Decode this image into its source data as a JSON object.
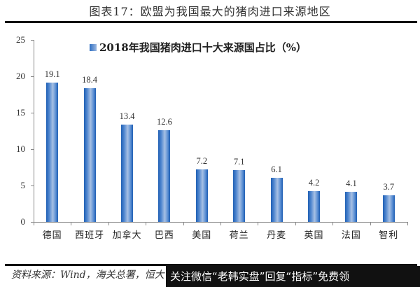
{
  "header": {
    "title": "图表17：欧盟为我国最大的猪肉进口来源地区"
  },
  "chart_data": {
    "type": "bar",
    "title": "2018年我国猪肉进口十大来源国占比（%）",
    "legend": [
      "2018年我国猪肉进口十大来源国占比（%）"
    ],
    "legend_position": "top",
    "categories": [
      "德国",
      "西班牙",
      "加拿大",
      "巴西",
      "美国",
      "荷兰",
      "丹麦",
      "英国",
      "法国",
      "智利"
    ],
    "values": [
      19.1,
      18.4,
      13.4,
      12.6,
      7.2,
      7.1,
      6.1,
      4.2,
      4.1,
      3.7
    ],
    "value_labels": [
      "19.1",
      "18.4",
      "13.4",
      "12.6",
      "7.2",
      "7.1",
      "6.1",
      "4.2",
      "4.1",
      "3.7"
    ],
    "xlabel": "",
    "ylabel": "",
    "ylim": [
      0,
      25
    ],
    "yticks": [
      "0",
      "5",
      "10",
      "15",
      "20",
      "25"
    ],
    "grid": false,
    "bar_color": "#2e6fc2"
  },
  "footer": {
    "source": "资料来源：Wind，海关总署，恒大",
    "watermark": "关注微信“老韩实盘”回复“指标”免费领"
  }
}
